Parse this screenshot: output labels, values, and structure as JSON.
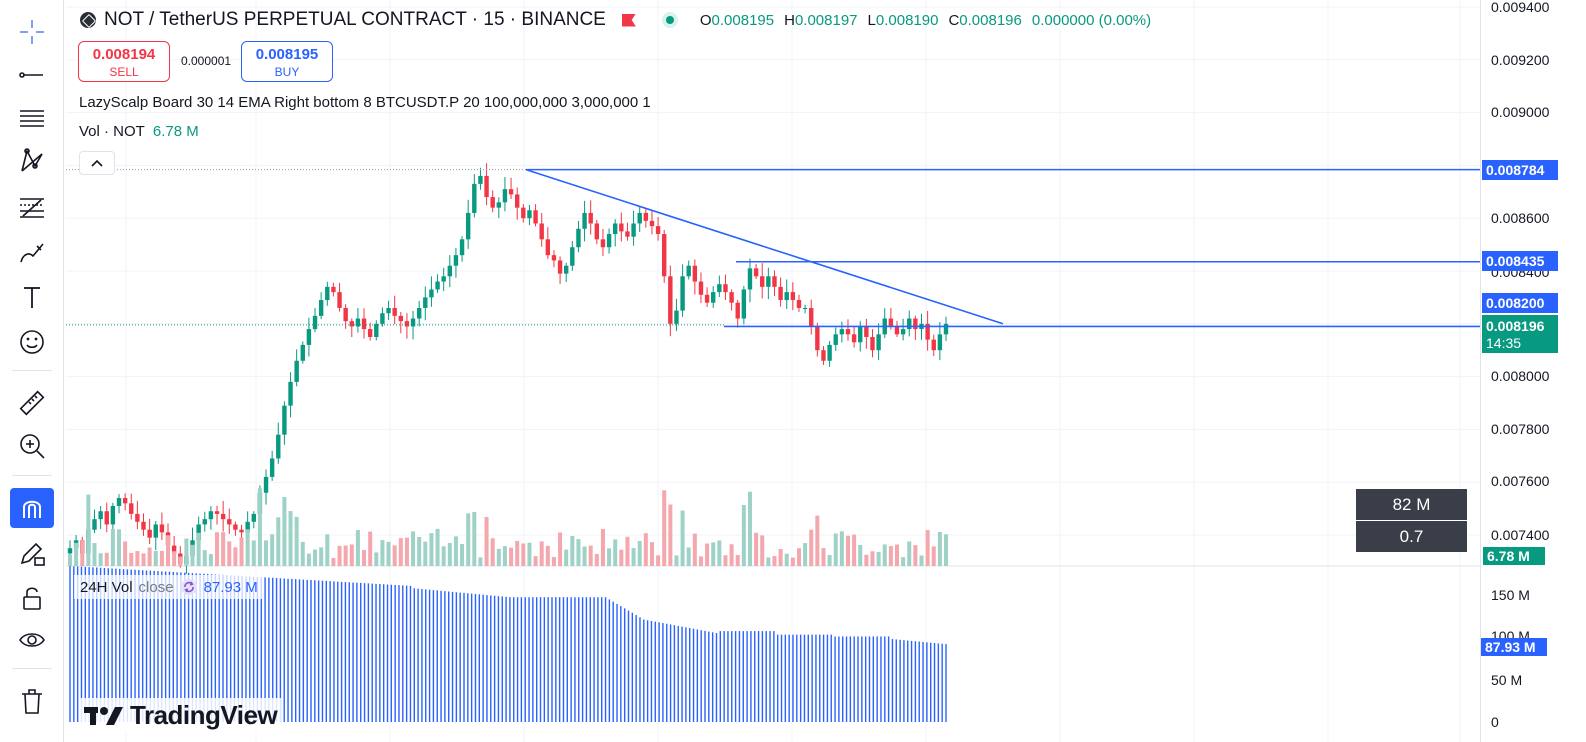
{
  "header": {
    "symbol_title": "NOT / TetherUS PERPETUAL CONTRACT · 15 · BINANCE",
    "ohlc": {
      "o_key": "O",
      "o_val": "0.008195",
      "h_key": "H",
      "h_val": "0.008197",
      "l_key": "L",
      "l_val": "0.008190",
      "c_key": "C",
      "c_val": "0.008196",
      "change": "0.000000 (0.00%)"
    }
  },
  "trade": {
    "sell_price": "0.008194",
    "sell_label": "SELL",
    "spread": "0.000001",
    "buy_price": "0.008195",
    "buy_label": "BUY"
  },
  "indicator": {
    "text": "LazyScalp Board 30 14 EMA Right bottom 8 BTCUSDT.P 20 100,000,000 3,000,000 1"
  },
  "volume_legend": {
    "name": "Vol · NOT",
    "value": "6.78 M"
  },
  "pane2_legend": {
    "name": "24H Vol",
    "source": "close",
    "value": "87.93 M"
  },
  "branding": {
    "logo_text": "TradingView"
  },
  "price_axis": {
    "ticks": [
      "0.009400",
      "0.009200",
      "0.009000",
      "0.008600",
      "0.008400",
      "0.008000",
      "0.007800",
      "0.007600",
      "0.007400"
    ],
    "tags": {
      "line_top": "0.008784",
      "line_mid": "0.008435",
      "line_low": "0.008200",
      "current": "0.008196",
      "countdown": "14:35"
    }
  },
  "volume_axis": {
    "ticks": [
      "150 M",
      "100 M",
      "50 M",
      "0"
    ],
    "vol_tag": "6.78 M",
    "vol24_tag": "87.93 M"
  },
  "board_boxes": {
    "top": "82 M",
    "bottom": "0.7"
  },
  "colors": {
    "up": "#089981",
    "down": "#f23645",
    "line": "#2962ff",
    "vol_up": "#9ed2c6",
    "vol_down": "#f4a7ad",
    "vol24": "#2962ff"
  },
  "chart_data": {
    "type": "candlestick",
    "price_range": [
      0.0073,
      0.0094
    ],
    "volume_range_24h": [
      0,
      175000000
    ],
    "horizontal_lines": [
      0.008784,
      0.008435,
      0.0082
    ],
    "current_price": 0.008196,
    "trendline": {
      "from_price": 0.008784,
      "to_price": 0.0082
    },
    "candles_close": [
      0.00735,
      0.00738,
      0.00733,
      0.00742,
      0.00746,
      0.00749,
      0.00744,
      0.00751,
      0.00754,
      0.00752,
      0.00748,
      0.00745,
      0.00742,
      0.00739,
      0.00744,
      0.00741,
      0.00736,
      0.00733,
      0.00729,
      0.00732,
      0.00738,
      0.00744,
      0.00746,
      0.00749,
      0.00748,
      0.00746,
      0.00744,
      0.00742,
      0.00741,
      0.00745,
      0.00748,
      0.00756,
      0.00762,
      0.00769,
      0.00778,
      0.00789,
      0.00798,
      0.00806,
      0.00812,
      0.00818,
      0.00823,
      0.00829,
      0.00834,
      0.00832,
      0.00826,
      0.00821,
      0.00819,
      0.00822,
      0.00818,
      0.00815,
      0.0082,
      0.00824,
      0.00826,
      0.00823,
      0.00821,
      0.00819,
      0.00822,
      0.00826,
      0.0083,
      0.00833,
      0.00836,
      0.00838,
      0.00842,
      0.00846,
      0.00852,
      0.00862,
      0.00873,
      0.00876,
      0.00868,
      0.00864,
      0.00866,
      0.00871,
      0.00869,
      0.00864,
      0.0086,
      0.00863,
      0.00858,
      0.00852,
      0.00846,
      0.00844,
      0.00839,
      0.00842,
      0.00849,
      0.00856,
      0.00862,
      0.00858,
      0.00852,
      0.00849,
      0.00854,
      0.00858,
      0.00855,
      0.00853,
      0.00858,
      0.00862,
      0.00859,
      0.00857,
      0.00854,
      0.00838,
      0.0082,
      0.00825,
      0.00838,
      0.00842,
      0.00836,
      0.00831,
      0.00828,
      0.00832,
      0.00835,
      0.00832,
      0.00828,
      0.00822,
      0.00833,
      0.00841,
      0.00838,
      0.00834,
      0.00838,
      0.00834,
      0.00829,
      0.00832,
      0.00829,
      0.00826,
      0.00826,
      0.00819,
      0.0081,
      0.00806,
      0.00812,
      0.00816,
      0.00818,
      0.00816,
      0.00813,
      0.00819,
      0.00815,
      0.0081,
      0.00816,
      0.00822,
      0.00819,
      0.00816,
      0.00818,
      0.00822,
      0.00818,
      0.0082,
      0.00814,
      0.0081,
      0.00816,
      0.0082
    ]
  }
}
